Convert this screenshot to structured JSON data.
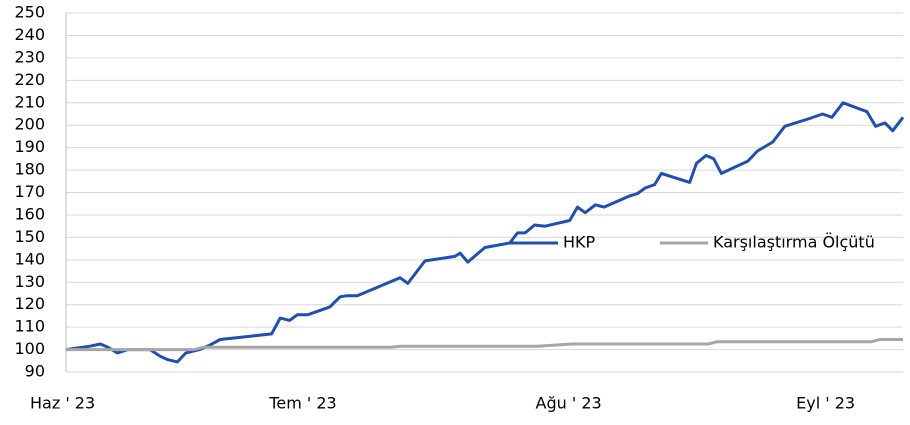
{
  "chart_data": {
    "type": "line",
    "xlim": [
      0,
      97.7
    ],
    "xticks": [
      {
        "value": 0,
        "label": "Haz ' 23"
      },
      {
        "value": 30,
        "label": "Tem ' 23"
      },
      {
        "value": 61,
        "label": "Ağu ' 23"
      },
      {
        "value": 91,
        "label": "Eyl ' 23"
      }
    ],
    "ylim": [
      90,
      250
    ],
    "yticks": [
      90,
      100,
      110,
      120,
      130,
      140,
      150,
      160,
      170,
      180,
      190,
      200,
      210,
      220,
      230,
      240,
      250
    ],
    "grid": true,
    "legend": "right",
    "series": [
      {
        "name": "HKP",
        "color": "#1f4fb0",
        "x": [
          0,
          2.8,
          4,
          4.9,
          6,
          7.2,
          9.8,
          11,
          11.9,
          13,
          14,
          15.6,
          16.8,
          18,
          24,
          25,
          26.1,
          27,
          28.2,
          30.8,
          32,
          32.8,
          34,
          39,
          39.9,
          41.9,
          45.4,
          46,
          46.9,
          48.9,
          51.8,
          52.7,
          53.6,
          54.7,
          55.9,
          58.8,
          59.7,
          60.6,
          61.8,
          62.8,
          65.8,
          66.7,
          67.6,
          68.7,
          69.5,
          72.8,
          73.6,
          74.7,
          75.6,
          76.5,
          79.6,
          80.7,
          82.5,
          83.9,
          86.8,
          88.3,
          89.4,
          90.7,
          93.5,
          94.5,
          95.6,
          96.5,
          97.7
        ],
        "values": [
          100,
          101.5,
          102.5,
          101,
          98.5,
          100,
          100,
          97,
          95.5,
          94.5,
          98.5,
          100,
          102,
          104.5,
          107,
          114,
          113,
          115.5,
          115.5,
          119,
          123.5,
          124,
          124,
          132,
          129.5,
          139.5,
          141.5,
          143,
          139,
          145.5,
          147.5,
          152,
          152,
          155.5,
          155,
          157.5,
          163.5,
          161,
          164.5,
          163.5,
          168.5,
          169.5,
          172,
          173.5,
          178.5,
          174.5,
          183,
          186.5,
          185,
          178.5,
          184,
          188.5,
          192.5,
          199.5,
          203,
          205,
          203.5,
          210,
          206,
          199.5,
          201,
          197.5,
          203.5
        ]
      },
      {
        "name": "Karşılaştırma Ölçütü",
        "color": "#a6a6a6",
        "x": [
          0,
          15,
          16,
          38,
          39,
          55,
          59,
          75,
          76,
          94,
          95,
          97.7
        ],
        "values": [
          100,
          100,
          101,
          101,
          101.5,
          101.5,
          102.5,
          102.5,
          103.5,
          103.5,
          104.5,
          104.5
        ]
      }
    ]
  }
}
